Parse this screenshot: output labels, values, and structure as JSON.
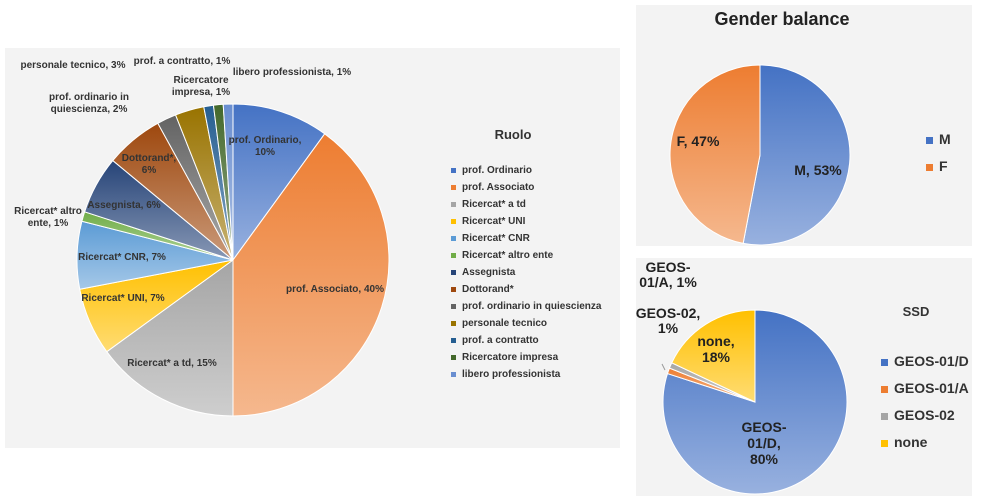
{
  "chart_data": [
    {
      "type": "pie",
      "title": "",
      "legend_title": "Ruolo",
      "legend_position": "right",
      "series": [
        {
          "name": "prof. Ordinario",
          "value": 10,
          "color": "#4472c4",
          "label": "prof. Ordinario, 10%"
        },
        {
          "name": "prof. Associato",
          "value": 40,
          "color": "#ed7d31",
          "label": "prof. Associato, 40%"
        },
        {
          "name": "Ricercat* a td",
          "value": 15,
          "color": "#a5a5a5",
          "label": "Ricercat* a td, 15%"
        },
        {
          "name": "Ricercat* UNI",
          "value": 7,
          "color": "#ffc000",
          "label": "Ricercat* UNI, 7%"
        },
        {
          "name": "Ricercat* CNR",
          "value": 7,
          "color": "#5b9bd5",
          "label": "Ricercat* CNR, 7%"
        },
        {
          "name": "Ricercat* altro ente",
          "value": 1,
          "color": "#70ad47",
          "label": "Ricercat* altro ente, 1%"
        },
        {
          "name": "Assegnista",
          "value": 6,
          "color": "#264478",
          "label": "Assegnista, 6%"
        },
        {
          "name": "Dottorand*",
          "value": 6,
          "color": "#9e480e",
          "label": "Dottorand*, 6%"
        },
        {
          "name": "prof. ordinario in quiescienza",
          "value": 2,
          "color": "#636363",
          "label": "prof. ordinario in quiescienza, 2%"
        },
        {
          "name": "personale tecnico",
          "value": 3,
          "color": "#997300",
          "label": "personale tecnico, 3%"
        },
        {
          "name": "prof. a contratto",
          "value": 1,
          "color": "#255e91",
          "label": "prof. a contratto, 1%"
        },
        {
          "name": "Ricercatore impresa",
          "value": 1,
          "color": "#43682b",
          "label": "Ricercatore impresa, 1%"
        },
        {
          "name": "libero professionista",
          "value": 1,
          "color": "#698ed0",
          "label": "libero professionista, 1%"
        }
      ]
    },
    {
      "type": "pie",
      "title": "Gender balance",
      "legend_position": "right",
      "series": [
        {
          "name": "M",
          "value": 53,
          "color": "#4472c4",
          "label": "M, 53%"
        },
        {
          "name": "F",
          "value": 47,
          "color": "#ed7d31",
          "label": "F, 47%"
        }
      ]
    },
    {
      "type": "pie",
      "title": "SSD",
      "legend_position": "right",
      "series": [
        {
          "name": "GEOS-01/D",
          "value": 80,
          "color": "#4472c4",
          "label": "GEOS-01/D, 80%"
        },
        {
          "name": "GEOS-01/A",
          "value": 1,
          "color": "#ed7d31",
          "label": "GEOS-01/A, 1%"
        },
        {
          "name": "GEOS-02",
          "value": 1,
          "color": "#a5a5a5",
          "label": "GEOS-02, 1%"
        },
        {
          "name": "none",
          "value": 18,
          "color": "#ffc000",
          "label": "none, 18%"
        }
      ]
    }
  ]
}
